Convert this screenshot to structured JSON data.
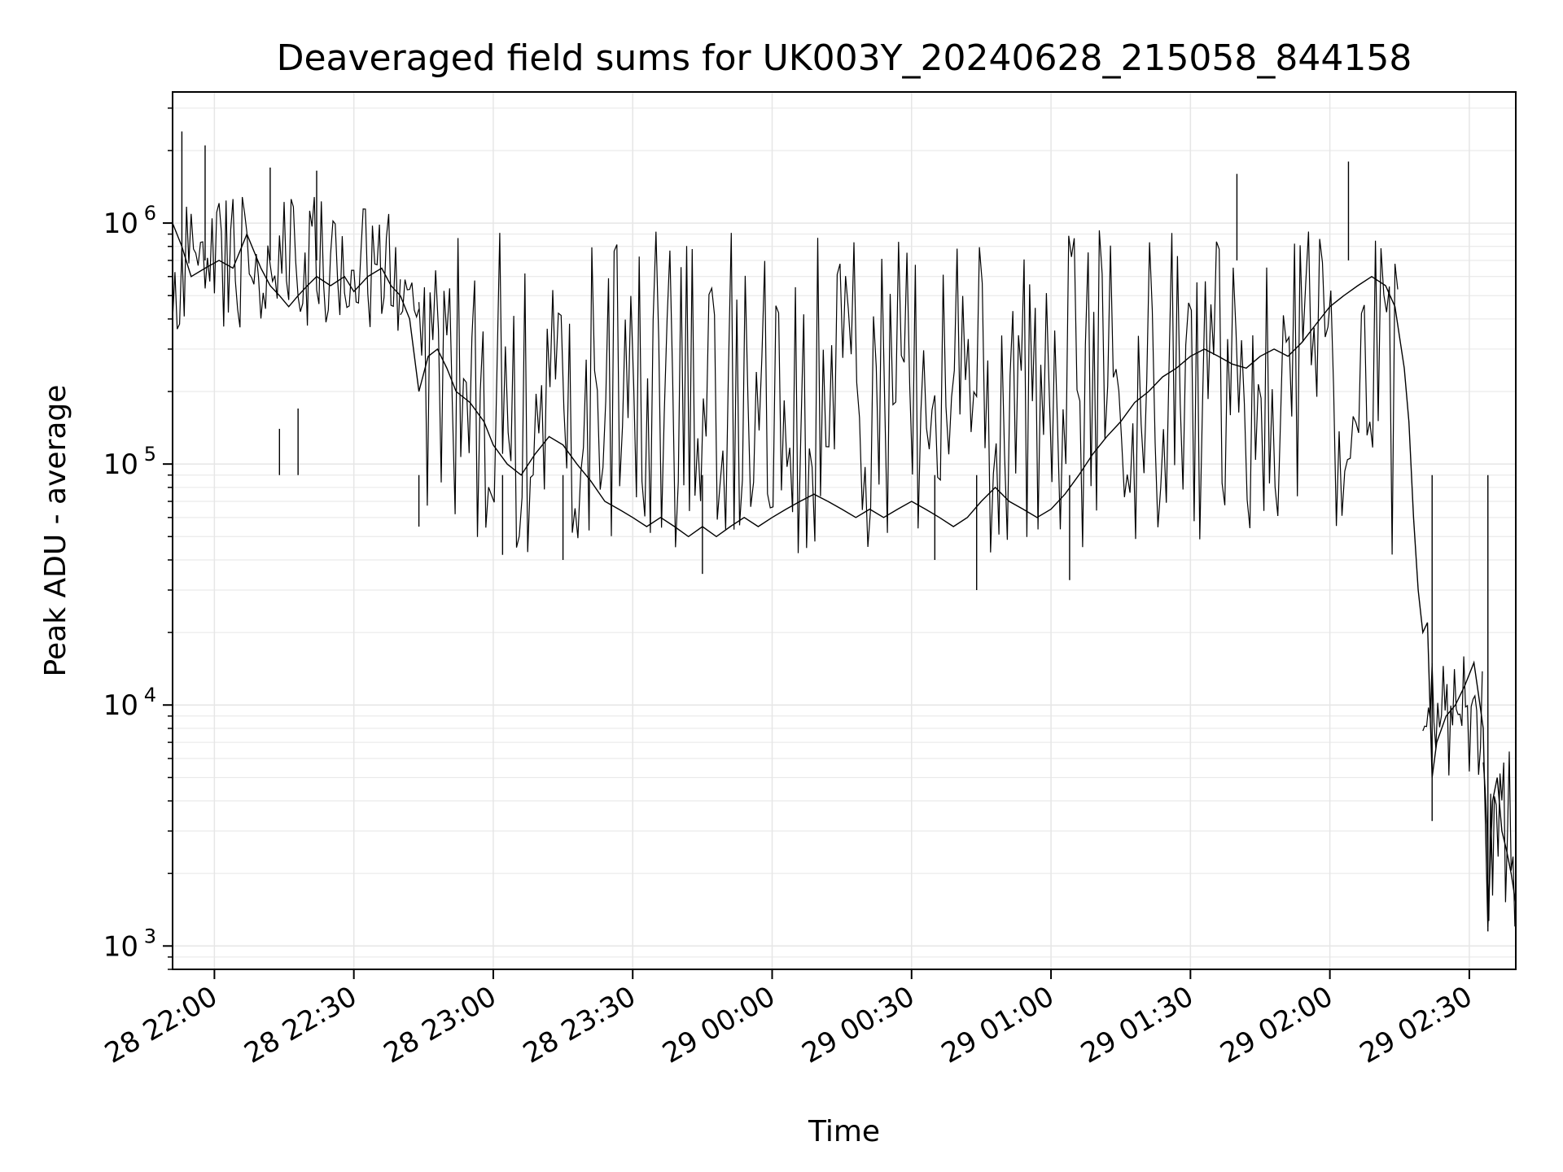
{
  "chart_data": {
    "type": "line",
    "title": "Deaveraged field sums for UK003Y_20240628_215058_844158",
    "xlabel": "Time",
    "ylabel": "Peak ADU - average",
    "yscale": "log",
    "ylim": [
      800,
      3500000
    ],
    "xlim": [
      "2024-06-28 21:51",
      "2024-06-29 02:40"
    ],
    "grid": true,
    "line_color": "#000000",
    "grid_color": "#e6e6e6",
    "x_ticks": [
      "28 22:00",
      "28 22:30",
      "28 23:00",
      "28 23:30",
      "29 00:00",
      "29 00:30",
      "29 01:00",
      "29 01:30",
      "29 02:00",
      "29 02:30"
    ],
    "y_ticks": [
      {
        "base": "10",
        "exp": "3",
        "value": 1000
      },
      {
        "base": "10",
        "exp": "4",
        "value": 10000
      },
      {
        "base": "10",
        "exp": "5",
        "value": 100000
      },
      {
        "base": "10",
        "exp": "6",
        "value": 1000000
      }
    ],
    "series": [
      {
        "points": [
          [
            "2024-06-28 21:51",
            1000000
          ],
          [
            "2024-06-28 21:53",
            800000
          ],
          [
            "2024-06-28 21:55",
            600000
          ],
          [
            "2024-06-28 21:58",
            650000
          ],
          [
            "2024-06-28 22:01",
            700000
          ],
          [
            "2024-06-28 22:04",
            650000
          ],
          [
            "2024-06-28 22:07",
            900000
          ],
          [
            "2024-06-28 22:10",
            650000
          ],
          [
            "2024-06-28 22:12",
            550000
          ],
          [
            "2024-06-28 22:14",
            500000
          ],
          [
            "2024-06-28 22:16",
            450000
          ],
          [
            "2024-06-28 22:18",
            500000
          ],
          [
            "2024-06-28 22:20",
            550000
          ],
          [
            "2024-06-28 22:22",
            600000
          ],
          [
            "2024-06-28 22:25",
            550000
          ],
          [
            "2024-06-28 22:28",
            600000
          ],
          [
            "2024-06-28 22:30",
            520000
          ],
          [
            "2024-06-28 22:33",
            600000
          ],
          [
            "2024-06-28 22:36",
            650000
          ],
          [
            "2024-06-28 22:38",
            550000
          ],
          [
            "2024-06-28 22:40",
            500000
          ],
          [
            "2024-06-28 22:42",
            400000
          ],
          [
            "2024-06-28 22:44",
            200000
          ],
          [
            "2024-06-28 22:46",
            280000
          ],
          [
            "2024-06-28 22:48",
            300000
          ],
          [
            "2024-06-28 22:50",
            250000
          ],
          [
            "2024-06-28 22:52",
            200000
          ],
          [
            "2024-06-28 22:55",
            180000
          ],
          [
            "2024-06-28 22:58",
            150000
          ],
          [
            "2024-06-28 23:00",
            120000
          ],
          [
            "2024-06-28 23:03",
            100000
          ],
          [
            "2024-06-28 23:06",
            90000
          ],
          [
            "2024-06-28 23:09",
            110000
          ],
          [
            "2024-06-28 23:12",
            130000
          ],
          [
            "2024-06-28 23:15",
            120000
          ],
          [
            "2024-06-28 23:18",
            100000
          ],
          [
            "2024-06-28 23:21",
            85000
          ],
          [
            "2024-06-28 23:24",
            70000
          ],
          [
            "2024-06-28 23:27",
            65000
          ],
          [
            "2024-06-28 23:30",
            60000
          ],
          [
            "2024-06-28 23:33",
            55000
          ],
          [
            "2024-06-28 23:36",
            60000
          ],
          [
            "2024-06-28 23:39",
            55000
          ],
          [
            "2024-06-28 23:42",
            50000
          ],
          [
            "2024-06-28 23:45",
            55000
          ],
          [
            "2024-06-28 23:48",
            50000
          ],
          [
            "2024-06-28 23:51",
            55000
          ],
          [
            "2024-06-28 23:54",
            60000
          ],
          [
            "2024-06-28 23:57",
            55000
          ],
          [
            "2024-06-29 00:00",
            60000
          ],
          [
            "2024-06-29 00:03",
            65000
          ],
          [
            "2024-06-29 00:06",
            70000
          ],
          [
            "2024-06-29 00:09",
            75000
          ],
          [
            "2024-06-29 00:12",
            70000
          ],
          [
            "2024-06-29 00:15",
            65000
          ],
          [
            "2024-06-29 00:18",
            60000
          ],
          [
            "2024-06-29 00:21",
            65000
          ],
          [
            "2024-06-29 00:24",
            60000
          ],
          [
            "2024-06-29 00:27",
            65000
          ],
          [
            "2024-06-29 00:30",
            70000
          ],
          [
            "2024-06-29 00:33",
            65000
          ],
          [
            "2024-06-29 00:36",
            60000
          ],
          [
            "2024-06-29 00:39",
            55000
          ],
          [
            "2024-06-29 00:42",
            60000
          ],
          [
            "2024-06-29 00:45",
            70000
          ],
          [
            "2024-06-29 00:48",
            80000
          ],
          [
            "2024-06-29 00:51",
            70000
          ],
          [
            "2024-06-29 00:54",
            65000
          ],
          [
            "2024-06-29 00:57",
            60000
          ],
          [
            "2024-06-29 01:00",
            65000
          ],
          [
            "2024-06-29 01:03",
            75000
          ],
          [
            "2024-06-29 01:06",
            90000
          ],
          [
            "2024-06-29 01:09",
            110000
          ],
          [
            "2024-06-29 01:12",
            130000
          ],
          [
            "2024-06-29 01:15",
            150000
          ],
          [
            "2024-06-29 01:18",
            180000
          ],
          [
            "2024-06-29 01:21",
            200000
          ],
          [
            "2024-06-29 01:24",
            230000
          ],
          [
            "2024-06-29 01:27",
            250000
          ],
          [
            "2024-06-29 01:30",
            280000
          ],
          [
            "2024-06-29 01:33",
            300000
          ],
          [
            "2024-06-29 01:36",
            280000
          ],
          [
            "2024-06-29 01:39",
            260000
          ],
          [
            "2024-06-29 01:42",
            250000
          ],
          [
            "2024-06-29 01:45",
            280000
          ],
          [
            "2024-06-29 01:48",
            300000
          ],
          [
            "2024-06-29 01:51",
            280000
          ],
          [
            "2024-06-29 01:54",
            320000
          ],
          [
            "2024-06-29 01:57",
            380000
          ],
          [
            "2024-06-29 02:00",
            450000
          ],
          [
            "2024-06-29 02:03",
            500000
          ],
          [
            "2024-06-29 02:06",
            550000
          ],
          [
            "2024-06-29 02:09",
            600000
          ],
          [
            "2024-06-29 02:12",
            550000
          ],
          [
            "2024-06-29 02:14",
            450000
          ],
          [
            "2024-06-29 02:16",
            250000
          ],
          [
            "2024-06-29 02:17",
            150000
          ],
          [
            "2024-06-29 02:18",
            60000
          ],
          [
            "2024-06-29 02:19",
            30000
          ],
          [
            "2024-06-29 02:20",
            20000
          ],
          [
            "2024-06-29 02:21",
            22000
          ],
          [
            "2024-06-29 02:22",
            5000
          ],
          [
            "2024-06-29 02:23",
            7000
          ],
          [
            "2024-06-29 02:25",
            9000
          ],
          [
            "2024-06-29 02:27",
            10000
          ],
          [
            "2024-06-29 02:29",
            12000
          ],
          [
            "2024-06-29 02:31",
            15000
          ],
          [
            "2024-06-29 02:32",
            11000
          ],
          [
            "2024-06-29 02:33",
            8000
          ],
          [
            "2024-06-29 02:34",
            1200
          ],
          [
            "2024-06-29 02:35",
            4000
          ],
          [
            "2024-06-29 02:36",
            5000
          ],
          [
            "2024-06-29 02:37",
            3000
          ],
          [
            "2024-06-29 02:38",
            2500
          ],
          [
            "2024-06-29 02:39",
            2000
          ],
          [
            "2024-06-29 02:40",
            1500
          ]
        ],
        "envelope": [
          {
            "from": "2024-06-28 21:51",
            "to": "2024-06-28 22:40",
            "hi": 1300000,
            "lo": 350000,
            "step_min": 0.5
          },
          {
            "from": "2024-06-28 22:40",
            "to": "2024-06-28 22:44",
            "hi": 600000,
            "lo": 350000,
            "step_min": 0.5
          },
          {
            "from": "2024-06-28 22:44",
            "to": "2024-06-29 02:15",
            "hi": 950000,
            "lo": 42000,
            "step_min": 0.6
          },
          {
            "from": "2024-06-29 02:20",
            "to": "2024-06-29 02:33",
            "hi": 16000,
            "lo": 5000,
            "step_min": 0.4
          },
          {
            "from": "2024-06-29 02:33",
            "to": "2024-06-29 02:40",
            "hi": 6500,
            "lo": 1200,
            "step_min": 0.4
          }
        ],
        "spikes": [
          [
            "2024-06-28 21:53",
            2400000
          ],
          [
            "2024-06-28 21:58",
            2100000
          ],
          [
            "2024-06-28 22:12",
            1700000
          ],
          [
            "2024-06-28 22:22",
            1650000
          ],
          [
            "2024-06-28 22:14",
            140000
          ],
          [
            "2024-06-28 22:18",
            170000
          ],
          [
            "2024-06-28 22:44",
            55000
          ],
          [
            "2024-06-28 23:02",
            42000
          ],
          [
            "2024-06-28 23:15",
            40000
          ],
          [
            "2024-06-28 23:45",
            35000
          ],
          [
            "2024-06-29 00:35",
            40000
          ],
          [
            "2024-06-29 00:44",
            30000
          ],
          [
            "2024-06-29 01:04",
            33000
          ],
          [
            "2024-06-29 01:40",
            1600000
          ],
          [
            "2024-06-29 02:04",
            1800000
          ],
          [
            "2024-06-29 02:22",
            3300
          ],
          [
            "2024-06-29 02:34",
            1150
          ]
        ]
      }
    ]
  }
}
